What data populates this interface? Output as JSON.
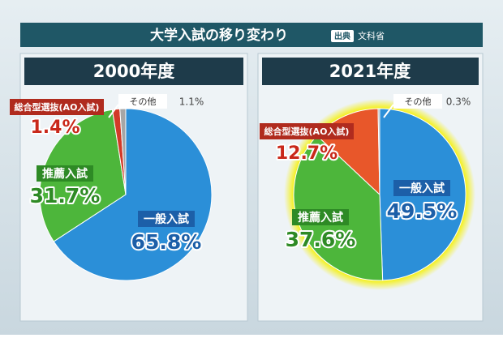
{
  "title": "大学入試の移り変わり",
  "source_label": "出典",
  "source": "文科省",
  "chart_data": [
    {
      "type": "pie",
      "title": "2000年度",
      "categories": [
        "一般入試",
        "推薦入試",
        "総合型選抜(AO入試)",
        "その他"
      ],
      "values": [
        65.8,
        31.7,
        1.4,
        1.1
      ],
      "value_labels": [
        "65.8%",
        "31.7%",
        "1.4%",
        "1.1%"
      ],
      "colors": [
        "#2b8fd8",
        "#4db63b",
        "#d23a28",
        "#a6a6a6"
      ]
    },
    {
      "type": "pie",
      "title": "2021年度",
      "categories": [
        "一般入試",
        "推薦入試",
        "総合型選抜(AO入試)",
        "その他"
      ],
      "values": [
        49.5,
        37.6,
        12.7,
        0.3
      ],
      "value_labels": [
        "49.5%",
        "37.6%",
        "12.7%",
        "0.3%"
      ],
      "colors": [
        "#2b8fd8",
        "#4db63b",
        "#e8572a",
        "#a6a6a6"
      ]
    }
  ]
}
